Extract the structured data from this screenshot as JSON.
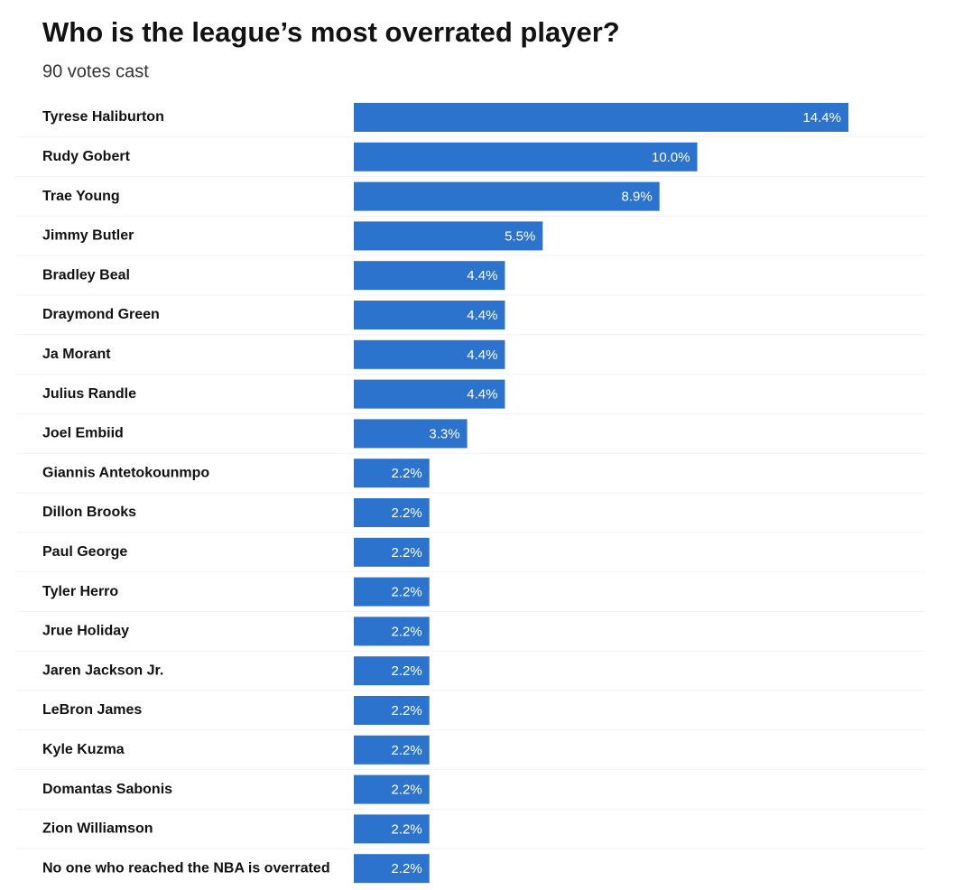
{
  "chart_data": {
    "type": "bar",
    "orientation": "horizontal",
    "title": "Who is the league’s most overrated player?",
    "subtitle": "90 votes cast",
    "categories": [
      "Tyrese Haliburton",
      "Rudy Gobert",
      "Trae Young",
      "Jimmy Butler",
      "Bradley Beal",
      "Draymond Green",
      "Ja Morant",
      "Julius Randle",
      "Joel Embiid",
      "Giannis Antetokounmpo",
      "Dillon Brooks",
      "Paul George",
      "Tyler Herro",
      "Jrue Holiday",
      "Jaren Jackson Jr.",
      "LeBron James",
      "Kyle Kuzma",
      "Domantas Sabonis",
      "Zion Williamson",
      "No one who reached the NBA is overrated"
    ],
    "values": [
      14.4,
      10.0,
      8.9,
      5.5,
      4.4,
      4.4,
      4.4,
      4.4,
      3.3,
      2.2,
      2.2,
      2.2,
      2.2,
      2.2,
      2.2,
      2.2,
      2.2,
      2.2,
      2.2,
      2.2
    ],
    "value_labels": [
      "14.4%",
      "10.0%",
      "8.9%",
      "5.5%",
      "4.4%",
      "4.4%",
      "4.4%",
      "4.4%",
      "3.3%",
      "2.2%",
      "2.2%",
      "2.2%",
      "2.2%",
      "2.2%",
      "2.2%",
      "2.2%",
      "2.2%",
      "2.2%",
      "2.2%",
      "2.2%"
    ],
    "color": "#2b73cd"
  }
}
